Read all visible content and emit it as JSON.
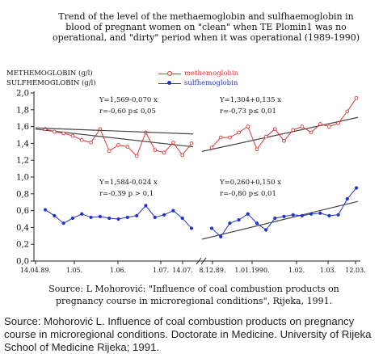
{
  "title_lines": [
    "Trend of the level of the methaemoglobin and sulfhaemoglobin in",
    "blood of pregnant women on \"clean\" when TE Plomin1 was no",
    "operational, and \"dirty\" period when it was operational (1989-1990)"
  ],
  "y_axis_labels": [
    "METHEMOGLOBIN (g/l)",
    "SULFHEMOGLOBIN (g/l)"
  ],
  "colors": {
    "methemoglobin": "#e33333",
    "sulfhemoglobin": "#2233cc",
    "trend": "#444444"
  },
  "chart_data": {
    "type": "line",
    "ylim": [
      0,
      2.0
    ],
    "y_ticks": [
      "0,0",
      "0,2",
      "0,4",
      "0,6",
      "0,8",
      "1,0",
      "1,2",
      "1,4",
      "1,6",
      "1,8",
      "2,0"
    ],
    "grid": false,
    "legend_position": "top-center",
    "legend": [
      "methemoglobin",
      "sulfhemoglobin"
    ],
    "panels": [
      {
        "period": "clean",
        "x_tick_labels": [
          "14.04.89.",
          "1.05.",
          "1.06.",
          "1.07.",
          "14.07."
        ],
        "series": [
          {
            "name": "methemoglobin",
            "values": [
              1.57,
              1.54,
              1.52,
              1.49,
              1.44,
              1.41,
              1.57,
              1.31,
              1.38,
              1.36,
              1.25,
              1.53,
              1.32,
              1.29,
              1.41,
              1.26,
              1.4
            ]
          },
          {
            "name": "sulfhemoglobin",
            "values": [
              0.61,
              0.54,
              0.45,
              0.51,
              0.56,
              0.52,
              0.53,
              0.51,
              0.5,
              0.52,
              0.54,
              0.66,
              0.52,
              0.55,
              0.6,
              0.51,
              0.39
            ]
          }
        ],
        "trend_methemoglobin": {
          "equation": "Y=1,569-0,070 x",
          "stats": "r=-0,60  p≤ 0,05"
        },
        "trend_sulfhemoglobin": {
          "equation": "Y=1,584-0,024 x",
          "stats": "r=-0,39  p > 0,1"
        }
      },
      {
        "period": "dirty",
        "x_tick_labels": [
          "8.12.89.",
          "1.01.1990.",
          "1.02.",
          "1.03.",
          "12.03."
        ],
        "series": [
          {
            "name": "methemoglobin",
            "values": [
              1.35,
              1.47,
              1.47,
              1.53,
              1.6,
              1.33,
              1.48,
              1.57,
              1.43,
              1.56,
              1.6,
              1.53,
              1.63,
              1.6,
              1.64,
              1.78,
              1.94
            ]
          },
          {
            "name": "sulfhemoglobin",
            "values": [
              0.39,
              0.29,
              0.45,
              0.49,
              0.56,
              0.45,
              0.37,
              0.51,
              0.53,
              0.55,
              0.54,
              0.56,
              0.57,
              0.54,
              0.55,
              0.74,
              0.87
            ]
          }
        ],
        "trend_methemoglobin": {
          "equation": "Y=1,304+0,135 x",
          "stats": "r=-0,73  p≤ 0,01"
        },
        "trend_sulfhemoglobin": {
          "equation": "Y=0,260+0,150 x",
          "stats": "r=-0,80  p≤ 0,01"
        }
      }
    ]
  },
  "source_caption_lines": [
    "Source: L Mohorović: \"Influence of coal combustion products on",
    "pregnancy course in microregional conditions\", Rijeka, 1991."
  ],
  "figure_caption_lines": [
    "Source: Mohorović L. Influence of coal combustion products on pregnancy",
    "course in microregional conditions. Doctorate in Medicine. University of Rijeka",
    "School of Medicine Rijeka; 1991."
  ]
}
